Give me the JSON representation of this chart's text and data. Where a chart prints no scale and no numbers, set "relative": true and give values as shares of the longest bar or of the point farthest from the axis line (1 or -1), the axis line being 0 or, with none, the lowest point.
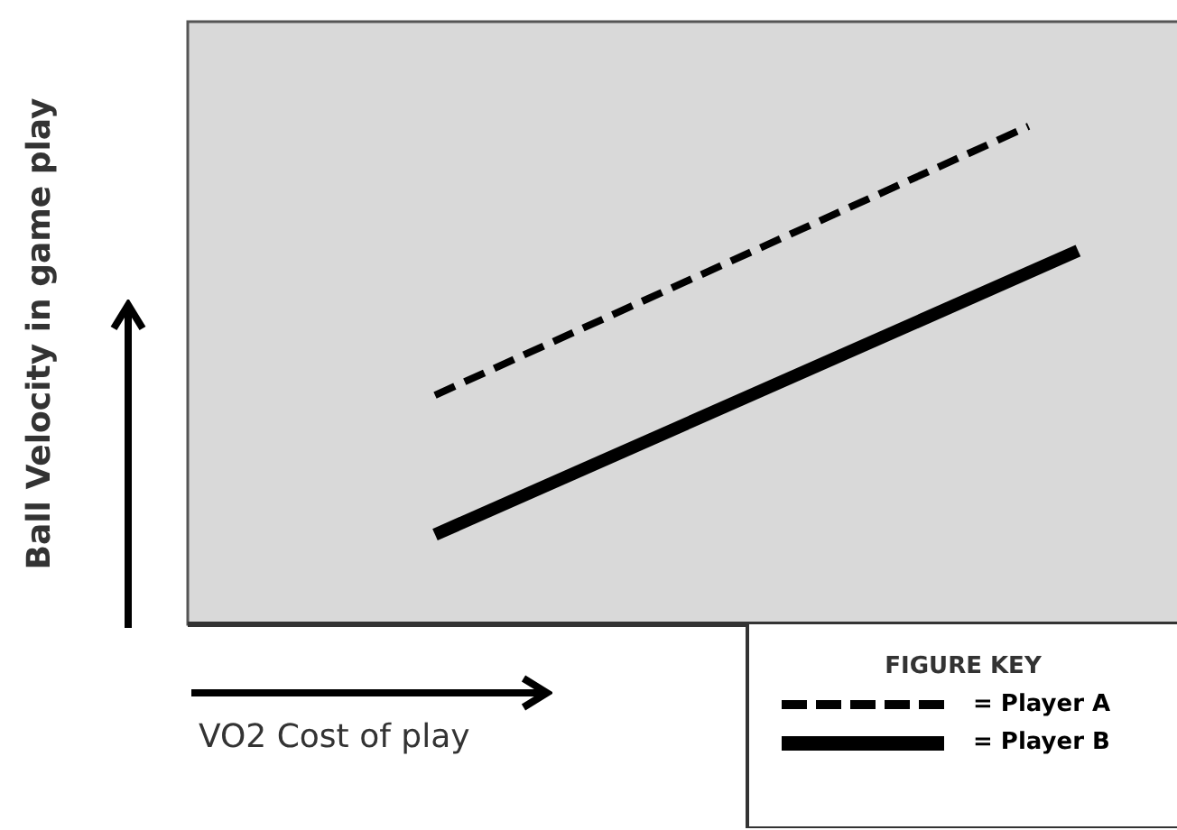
{
  "chart_data": {
    "type": "line",
    "relative": true,
    "xlabel": "VO2 Cost of play",
    "ylabel": "Ball Velocity in game play",
    "legend": "bottom right",
    "legend_title": "FIGURE KEY",
    "categories": [
      null,
      null,
      null,
      null,
      null,
      null,
      null,
      null,
      null,
      null,
      null,
      null,
      null,
      null,
      null,
      null,
      null,
      null,
      null,
      null,
      null
    ],
    "series": [
      {
        "name": "= Player A",
        "color": "#000000",
        "line_style": "dashed",
        "values": [
          null,
          null,
          null,
          null,
          null,
          0.46,
          null,
          null,
          null,
          null,
          null,
          null,
          null,
          null,
          null,
          null,
          null,
          1,
          null,
          null,
          null
        ]
      },
      {
        "name": "= Player B",
        "color": "#000000",
        "line_style": "solid",
        "values": [
          null,
          null,
          null,
          null,
          null,
          0.18,
          null,
          null,
          null,
          null,
          null,
          null,
          null,
          null,
          null,
          null,
          null,
          null,
          0.75,
          null,
          null
        ]
      }
    ]
  }
}
